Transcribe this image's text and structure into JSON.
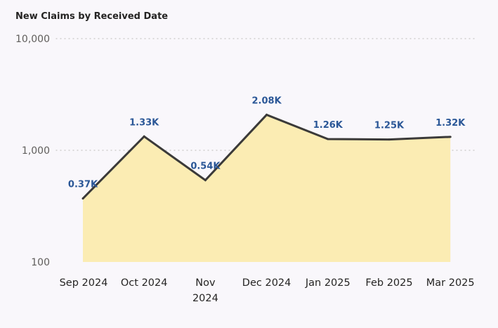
{
  "chart_data": {
    "type": "area",
    "title": "New Claims by Received Date",
    "y_scale": "log",
    "ylim": [
      100,
      10000
    ],
    "y_ticks": [
      {
        "value": 10000,
        "label": "10,000"
      },
      {
        "value": 1000,
        "label": "1,000"
      },
      {
        "value": 100,
        "label": "100"
      }
    ],
    "grid": true,
    "categories": [
      [
        "Sep 2024"
      ],
      [
        "Oct 2024"
      ],
      [
        "Nov",
        "2024"
      ],
      [
        "Dec 2024"
      ],
      [
        "Jan 2025"
      ],
      [
        "Feb 2025"
      ],
      [
        "Mar 2025"
      ]
    ],
    "series": [
      {
        "values": [
          370,
          1330,
          540,
          2080,
          1260,
          1250,
          1320
        ],
        "data_labels": [
          "0.37K",
          "1.33K",
          "0.54K",
          "2.08K",
          "1.26K",
          "1.25K",
          "1.32K"
        ]
      }
    ],
    "colors": {
      "line": "#3b3a39",
      "area": "#fbecb3",
      "data_label": "#2b5797",
      "gridline": "#c8c6c4"
    }
  }
}
